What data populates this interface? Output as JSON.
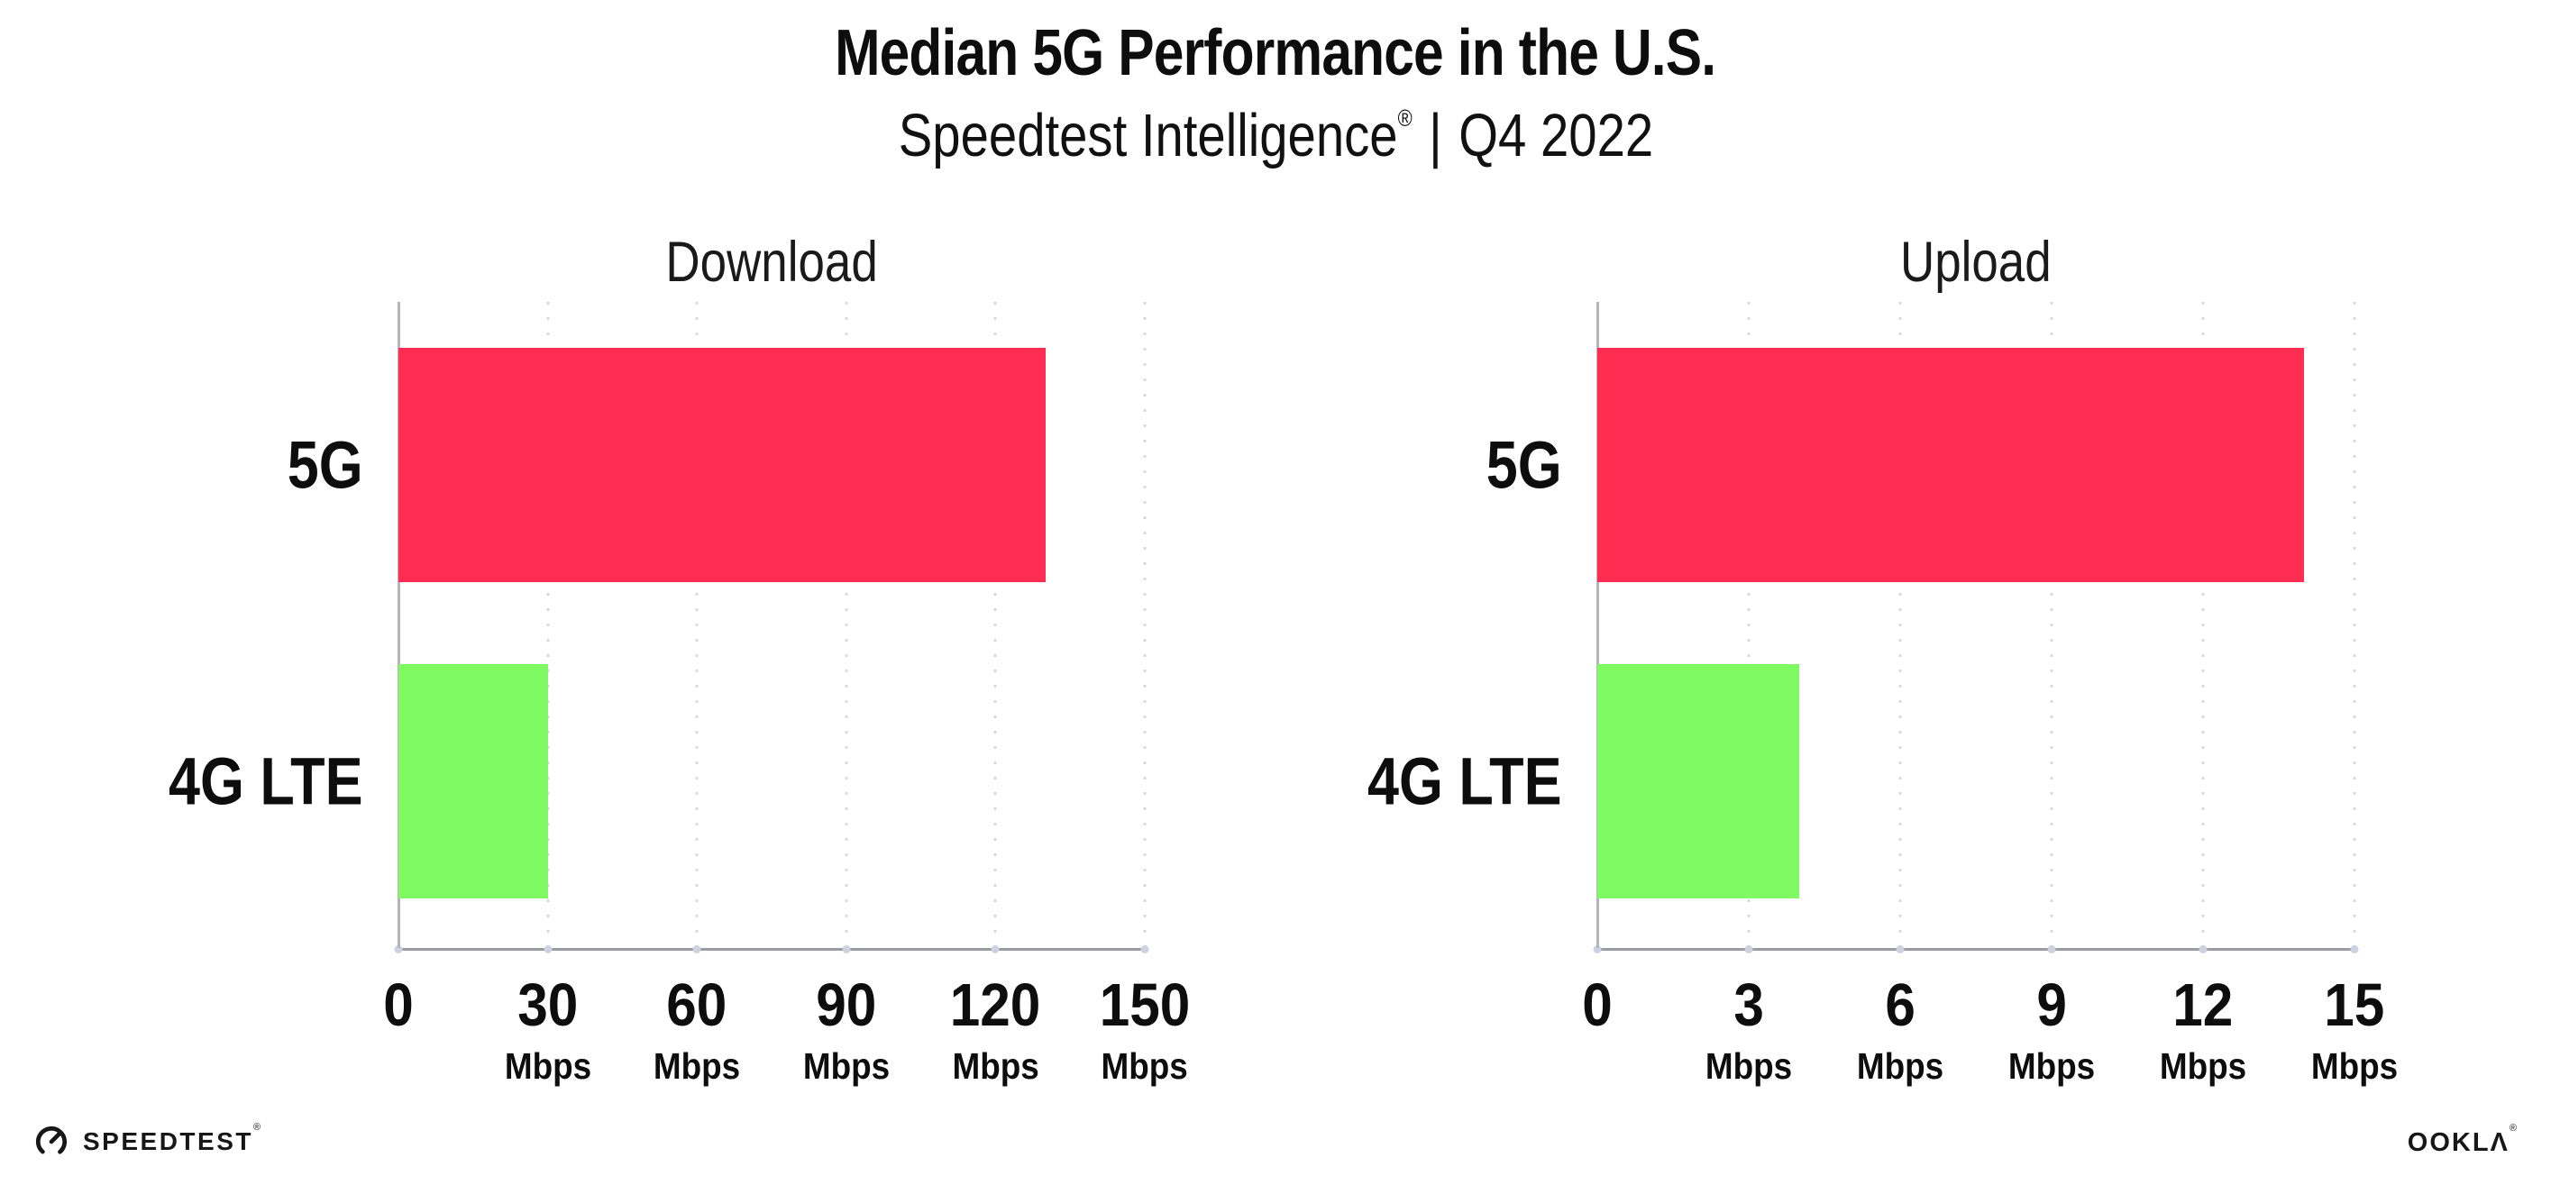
{
  "header": {
    "title": "Median 5G Performance in the U.S.",
    "subtitle_brand": "Speedtest Intelligence",
    "subtitle_mark": "®",
    "subtitle_divider": "|",
    "subtitle_period": "Q4 2022"
  },
  "colors": {
    "bar_5g": "#ff2d52",
    "bar_4g_lte": "#80fa62",
    "axis_line": "#9a9aa2",
    "grid_dots": "#d9d9e4",
    "tick_dots": "#ccd2e0"
  },
  "chart_data": [
    {
      "type": "bar",
      "orientation": "horizontal",
      "title": "Download",
      "categories": [
        "5G",
        "4G LTE"
      ],
      "values": [
        130,
        30
      ],
      "unit": "Mbps",
      "xlim": [
        0,
        150
      ],
      "xticks": [
        0,
        30,
        60,
        90,
        120,
        150
      ],
      "bar_colors": [
        "#ff2d52",
        "#80fa62"
      ],
      "grid": "dotted vertical",
      "legend": "none"
    },
    {
      "type": "bar",
      "orientation": "horizontal",
      "title": "Upload",
      "categories": [
        "5G",
        "4G LTE"
      ],
      "values": [
        14,
        4
      ],
      "unit": "Mbps",
      "xlim": [
        0,
        15
      ],
      "xticks": [
        0,
        3,
        6,
        9,
        12,
        15
      ],
      "bar_colors": [
        "#ff2d52",
        "#80fa62"
      ],
      "grid": "dotted vertical",
      "legend": "none"
    }
  ],
  "footer": {
    "speedtest": "SPEEDTEST",
    "speedtest_mark": "®",
    "ookla": "OOKLΛ",
    "ookla_mark": "®"
  }
}
